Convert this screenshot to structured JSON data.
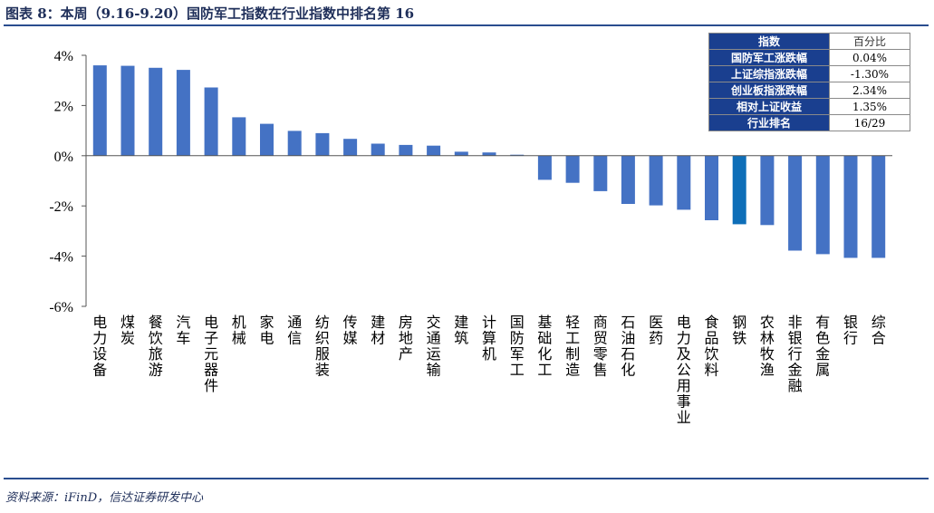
{
  "title": "图表 8：本周（9.16-9.20）国防军工指数在行业指数中排名第 16",
  "source": "资料来源：iFinD，信达证券研发中心",
  "colors": {
    "bar": "#4472c4",
    "highlight": "#0e6eb8",
    "table_header": "#1a3f8f",
    "rule": "#2a4d8f"
  },
  "info_table": {
    "header": {
      "key": "指数",
      "value": "百分比"
    },
    "rows": [
      {
        "key": "国防军工涨跌幅",
        "value": "0.04%"
      },
      {
        "key": "上证综指涨跌幅",
        "value": "-1.30%"
      },
      {
        "key": "创业板指涨跌幅",
        "value": "2.34%"
      },
      {
        "key": "相对上证收益",
        "value": "1.35%"
      },
      {
        "key": "行业排名",
        "value": "16/29"
      }
    ]
  },
  "chart_data": {
    "type": "bar",
    "title": "",
    "xlabel": "",
    "ylabel": "",
    "ylim": [
      -6,
      4
    ],
    "yticks": [
      4,
      2,
      0,
      -2,
      -4,
      -6
    ],
    "ytick_labels": [
      "4%",
      "2%",
      "0%",
      "-2%",
      "-4%",
      "-6%"
    ],
    "highlight_category": "钢铁",
    "categories": [
      "电力设备",
      "煤炭",
      "餐饮旅游",
      "汽车",
      "电子元器件",
      "机械",
      "家电",
      "通信",
      "纺织服装",
      "传媒",
      "建材",
      "房地产",
      "交通运输",
      "建筑",
      "计算机",
      "国防军工",
      "基础化工",
      "轻工制造",
      "商贸零售",
      "石油石化",
      "医药",
      "电力及公用事业",
      "食品饮料",
      "钢铁",
      "农林牧渔",
      "非银行金融",
      "有色金属",
      "银行",
      "综合"
    ],
    "values": [
      3.6,
      3.58,
      3.5,
      3.42,
      2.72,
      1.53,
      1.27,
      0.99,
      0.9,
      0.67,
      0.48,
      0.43,
      0.4,
      0.16,
      0.13,
      0.04,
      -0.96,
      -1.08,
      -1.41,
      -1.92,
      -1.98,
      -2.15,
      -2.57,
      -2.73,
      -2.76,
      -3.78,
      -3.92,
      -4.07,
      -4.07
    ]
  }
}
